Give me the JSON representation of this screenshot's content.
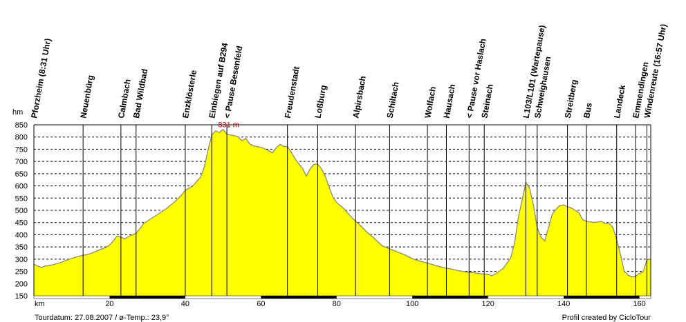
{
  "chart_data": {
    "type": "area",
    "ylabel": "hm",
    "xlabel": "km",
    "xlim": [
      0,
      163
    ],
    "ylim": [
      150,
      850
    ],
    "yticks": [
      150,
      200,
      250,
      300,
      350,
      400,
      450,
      500,
      550,
      600,
      650,
      700,
      750,
      800,
      850
    ],
    "xticks": [
      20,
      40,
      60,
      80,
      100,
      120,
      140,
      160
    ],
    "grid": true,
    "fill_color": "#ffff00",
    "line_color": "#888888",
    "max_label": "831 m",
    "max_x": 50,
    "max_y": 831,
    "waypoints": [
      {
        "x": 0,
        "label": "Pforzheim (8:31 Uhr)"
      },
      {
        "x": 13,
        "label": "Neuenbürg"
      },
      {
        "x": 23,
        "label": "Calmbach"
      },
      {
        "x": 27,
        "label": "Bad Wildbad"
      },
      {
        "x": 40,
        "label": "Enzklösterle"
      },
      {
        "x": 47,
        "label": "Einbiegen auf B294"
      },
      {
        "x": 51,
        "label": "< Pause Besenfeld"
      },
      {
        "x": 67,
        "label": "Freudenstadt"
      },
      {
        "x": 75,
        "label": "Loßburg"
      },
      {
        "x": 85,
        "label": "Alpirsbach"
      },
      {
        "x": 94,
        "label": "Schiltach"
      },
      {
        "x": 104,
        "label": "Wolfach"
      },
      {
        "x": 109,
        "label": "Hausach"
      },
      {
        "x": 115,
        "label": "< Pause vor Haslach"
      },
      {
        "x": 119,
        "label": "Steinach"
      },
      {
        "x": 130,
        "label": "L103/L101 (Wartepause)"
      },
      {
        "x": 133,
        "label": "Schweighausen"
      },
      {
        "x": 141,
        "label": "Streitberg"
      },
      {
        "x": 146,
        "label": "Bus"
      },
      {
        "x": 154,
        "label": "Landeck"
      },
      {
        "x": 159,
        "label": "Emmendingen"
      },
      {
        "x": 162,
        "label": "Windenreute (16:57 Uhr)"
      }
    ],
    "profile": [
      [
        0,
        280
      ],
      [
        1,
        272
      ],
      [
        2,
        266
      ],
      [
        3,
        272
      ],
      [
        5,
        277
      ],
      [
        7,
        286
      ],
      [
        9,
        298
      ],
      [
        11,
        308
      ],
      [
        13,
        316
      ],
      [
        15,
        323
      ],
      [
        17,
        336
      ],
      [
        19,
        348
      ],
      [
        20,
        358
      ],
      [
        21,
        375
      ],
      [
        22,
        395
      ],
      [
        23,
        390
      ],
      [
        24,
        383
      ],
      [
        25,
        393
      ],
      [
        27,
        406
      ],
      [
        28,
        425
      ],
      [
        29,
        446
      ],
      [
        31,
        466
      ],
      [
        33,
        486
      ],
      [
        35,
        507
      ],
      [
        37,
        532
      ],
      [
        39,
        562
      ],
      [
        40,
        582
      ],
      [
        42,
        600
      ],
      [
        44,
        635
      ],
      [
        45,
        675
      ],
      [
        46,
        745
      ],
      [
        47,
        808
      ],
      [
        48,
        825
      ],
      [
        49,
        818
      ],
      [
        50,
        831
      ],
      [
        51,
        812
      ],
      [
        52,
        808
      ],
      [
        53,
        806
      ],
      [
        54,
        800
      ],
      [
        55,
        785
      ],
      [
        56,
        794
      ],
      [
        57,
        772
      ],
      [
        58,
        764
      ],
      [
        60,
        758
      ],
      [
        62,
        745
      ],
      [
        63,
        735
      ],
      [
        64,
        755
      ],
      [
        65,
        770
      ],
      [
        66,
        762
      ],
      [
        67,
        760
      ],
      [
        68,
        738
      ],
      [
        69,
        712
      ],
      [
        70,
        690
      ],
      [
        71,
        672
      ],
      [
        72,
        640
      ],
      [
        73,
        670
      ],
      [
        74,
        688
      ],
      [
        75,
        690
      ],
      [
        76,
        670
      ],
      [
        77,
        640
      ],
      [
        78,
        596
      ],
      [
        79,
        555
      ],
      [
        80,
        532
      ],
      [
        82,
        506
      ],
      [
        84,
        470
      ],
      [
        86,
        442
      ],
      [
        88,
        411
      ],
      [
        90,
        385
      ],
      [
        92,
        355
      ],
      [
        94,
        342
      ],
      [
        96,
        330
      ],
      [
        98,
        318
      ],
      [
        100,
        302
      ],
      [
        102,
        292
      ],
      [
        104,
        284
      ],
      [
        106,
        275
      ],
      [
        108,
        266
      ],
      [
        110,
        260
      ],
      [
        112,
        254
      ],
      [
        114,
        248
      ],
      [
        116,
        245
      ],
      [
        118,
        240
      ],
      [
        120,
        238
      ],
      [
        121,
        232
      ],
      [
        122,
        240
      ],
      [
        124,
        262
      ],
      [
        126,
        305
      ],
      [
        127,
        365
      ],
      [
        128,
        470
      ],
      [
        129,
        540
      ],
      [
        130,
        615
      ],
      [
        131,
        590
      ],
      [
        132,
        520
      ],
      [
        133,
        430
      ],
      [
        134,
        390
      ],
      [
        135,
        375
      ],
      [
        136,
        430
      ],
      [
        137,
        485
      ],
      [
        138,
        505
      ],
      [
        139,
        520
      ],
      [
        140,
        522
      ],
      [
        141,
        515
      ],
      [
        142,
        510
      ],
      [
        143,
        500
      ],
      [
        144,
        490
      ],
      [
        145,
        462
      ],
      [
        146,
        455
      ],
      [
        148,
        450
      ],
      [
        150,
        455
      ],
      [
        151,
        445
      ],
      [
        152,
        448
      ],
      [
        153,
        430
      ],
      [
        154,
        380
      ],
      [
        155,
        320
      ],
      [
        156,
        250
      ],
      [
        157,
        235
      ],
      [
        158,
        228
      ],
      [
        159,
        230
      ],
      [
        160,
        242
      ],
      [
        161,
        248
      ],
      [
        162,
        298
      ],
      [
        163,
        300
      ]
    ]
  },
  "footer": {
    "left": "Tourdatum: 27.08.2007  /  ø-Temp.: 23,9°",
    "right": "Profil created by CicloTour"
  }
}
